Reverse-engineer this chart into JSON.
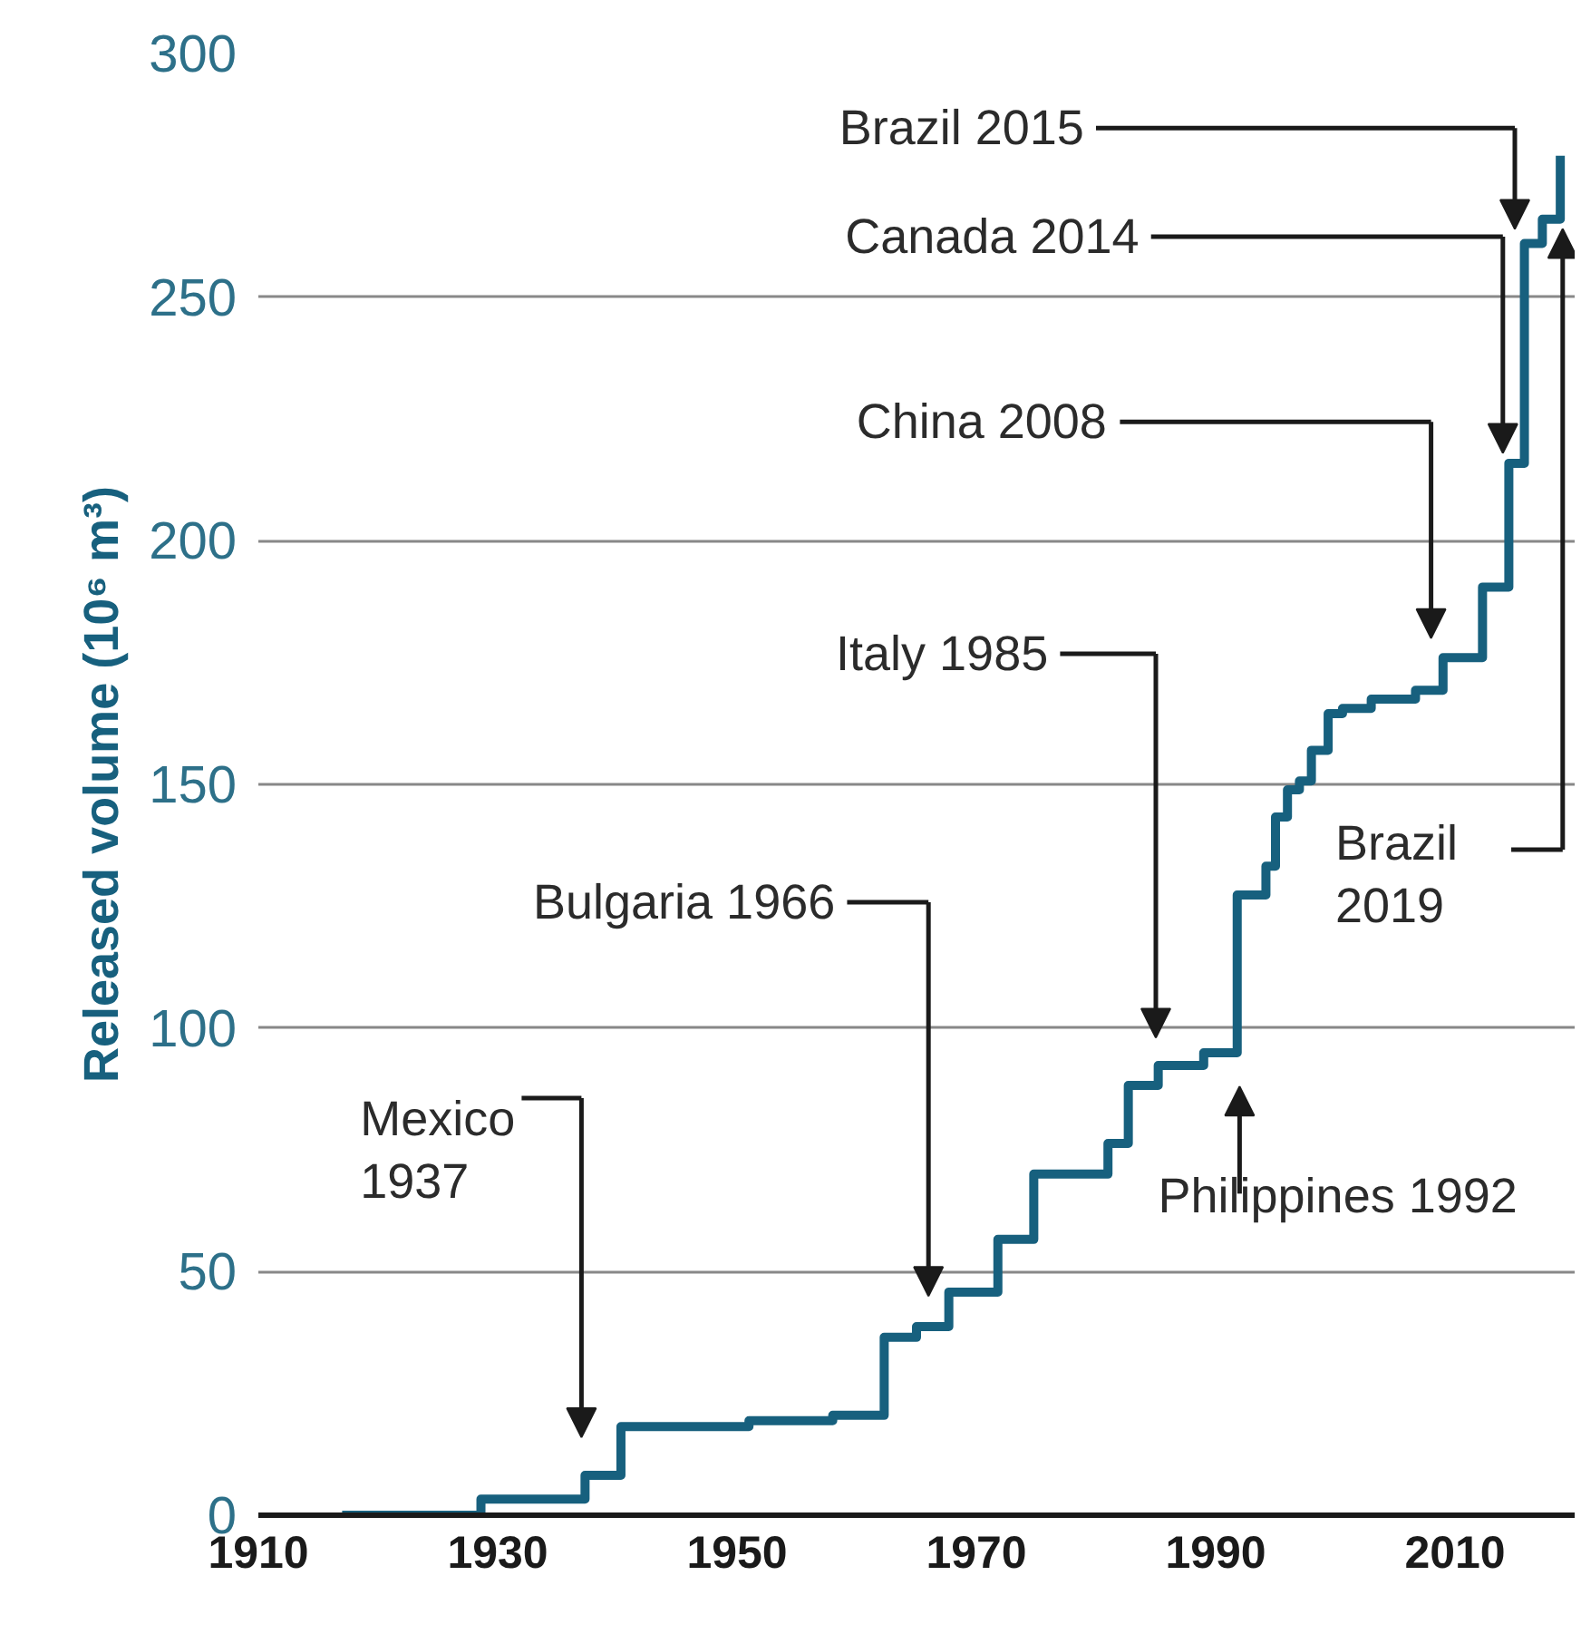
{
  "chart_data": {
    "type": "step",
    "ylabel": "Released volume (10⁶ m³)",
    "color": "#17607e",
    "xlim": [
      1910,
      2020
    ],
    "xticks": [
      1910,
      1930,
      1950,
      1970,
      1990,
      2010
    ],
    "ylim": [
      0,
      300
    ],
    "yticks": [
      0,
      50,
      100,
      150,
      200,
      250,
      300
    ],
    "grid": "y",
    "x": [
      1917,
      1928.6,
      1937.3,
      1940.3,
      1951,
      1958,
      1962.3,
      1965,
      1967.7,
      1971.8,
      1974.8,
      1981,
      1982.7,
      1985.2,
      1989,
      1991.8,
      1994.2,
      1995,
      1996,
      1997,
      1998,
      1999.4,
      2000.6,
      2003,
      2006.7,
      2009,
      2012.3,
      2014.5,
      2015.8,
      2017.3,
      2018.8
    ],
    "values": [
      0,
      3.3,
      8.2,
      18.2,
      19.4,
      20.5,
      36.5,
      38.7,
      45.8,
      56.6,
      70,
      76.3,
      88.2,
      92.3,
      94.9,
      127.3,
      133.2,
      143.3,
      148.9,
      150.7,
      157,
      164.5,
      165.6,
      167.5,
      169.3,
      176,
      190.5,
      215.9,
      261,
      266,
      279
    ],
    "annotations": [
      "Mexico\n1937",
      "Bulgaria 1966",
      "Italy 1985",
      "Philippines 1992",
      "China 2008",
      "Canada 2014",
      "Brazil 2015",
      "Brazil\n2019"
    ]
  }
}
